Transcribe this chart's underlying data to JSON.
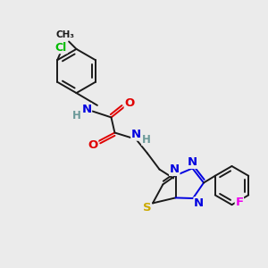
{
  "background_color": "#ebebeb",
  "bond_color": "#1a1a1a",
  "atom_colors": {
    "C": "#1a1a1a",
    "H": "#6b9999",
    "N": "#0000e0",
    "O": "#e00000",
    "S": "#ccaa00",
    "Cl": "#00bb00",
    "F": "#ee00ee"
  },
  "font_size": 8.5,
  "fig_size": [
    3.0,
    3.0
  ],
  "dpi": 100
}
